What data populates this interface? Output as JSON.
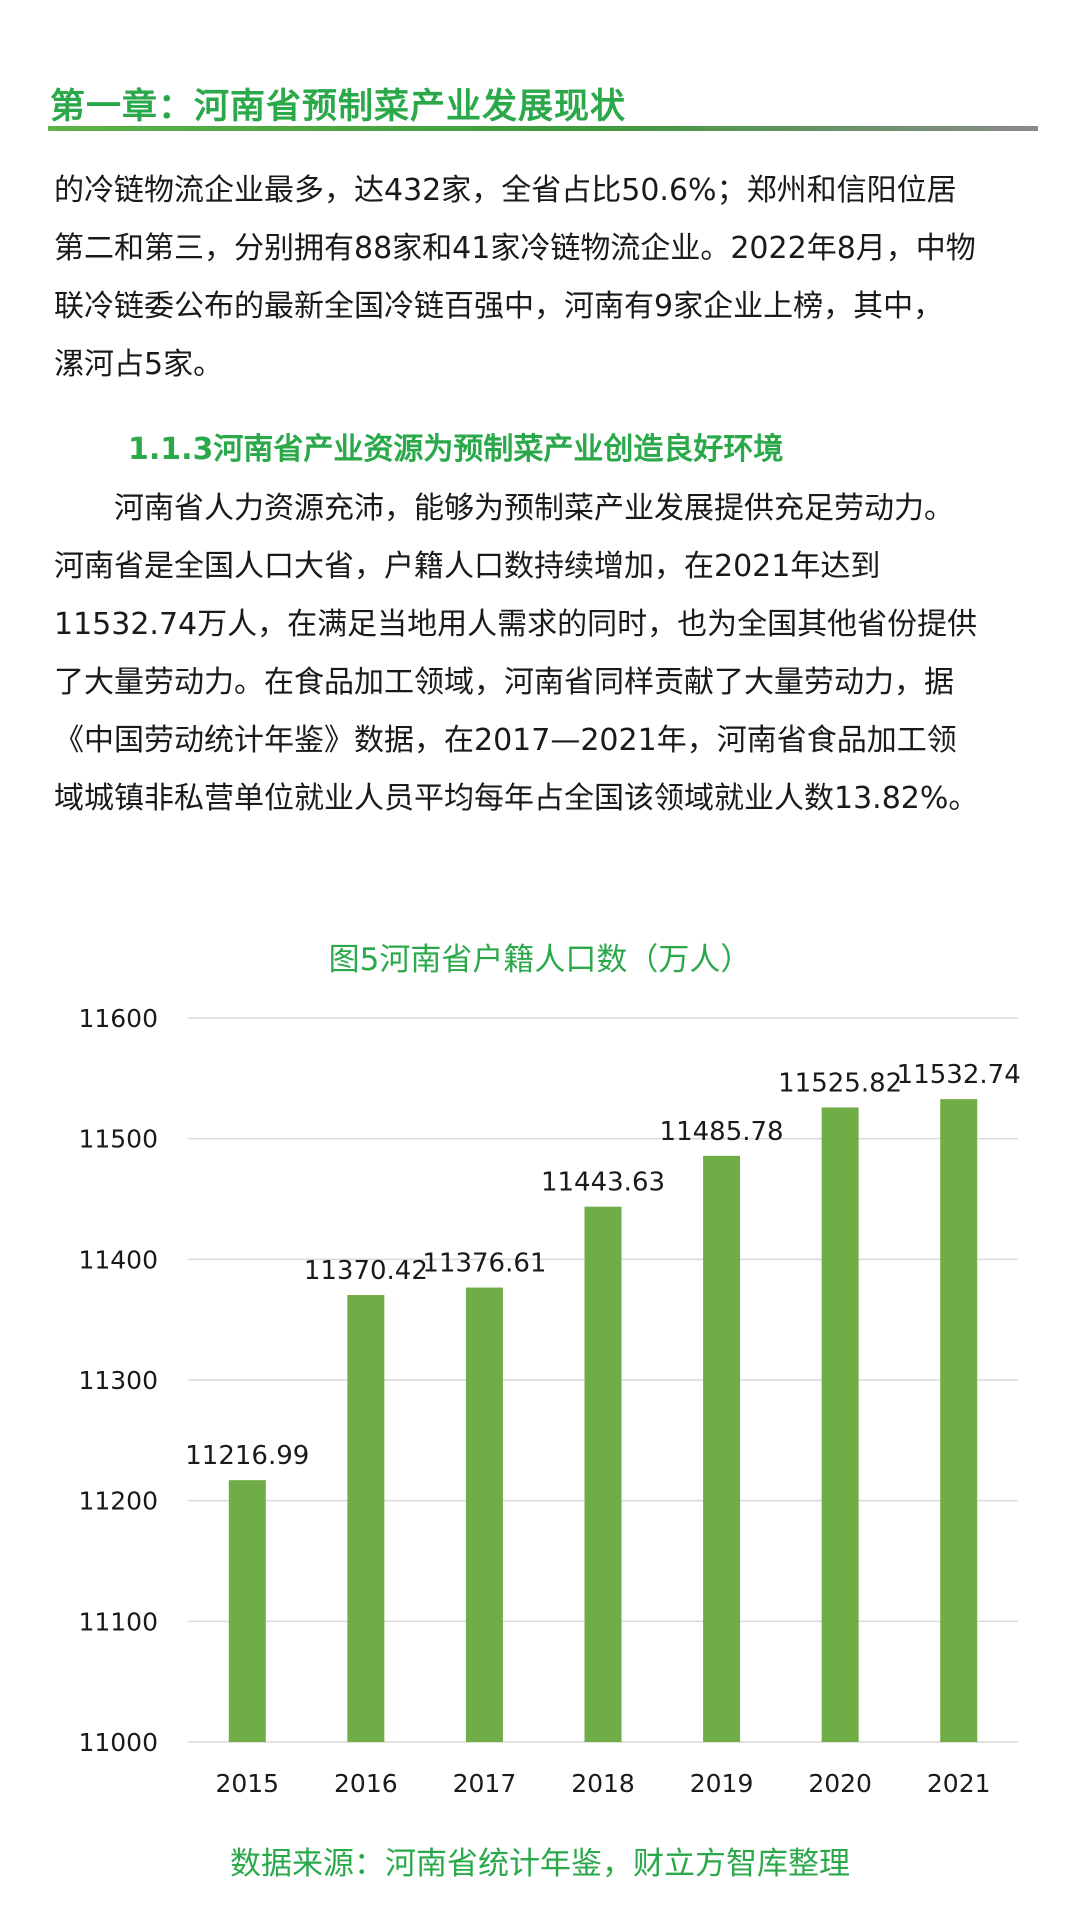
{
  "chapter": {
    "title": "第一章：河南省预制菜产业发展现状"
  },
  "paragraph1": {
    "lines": [
      "的冷链物流企业最多，达432家，全省占比50.6%；郑州和信阳位居",
      "第二和第三，分别拥有88家和41家冷链物流企业。2022年8月，中物",
      "联冷链委公布的最新全国冷链百强中，河南有9家企业上榜，其中，",
      "漯河占5家。"
    ]
  },
  "section": {
    "heading": "1.1.3河南省产业资源为预制菜产业创造良好环境"
  },
  "paragraph2": {
    "lines": [
      "　　河南省人力资源充沛，能够为预制菜产业发展提供充足劳动力。",
      "河南省是全国人口大省，户籍人口数持续增加，在2021年达到",
      "11532.74万人，在满足当地用人需求的同时，也为全国其他省份提供",
      "了大量劳动力。在食品加工领域，河南省同样贡献了大量劳动力，据",
      "《中国劳动统计年鉴》数据，在2017—2021年，河南省食品加工领",
      "域城镇非私营单位就业人员平均每年占全国该领域就业人数13.82%。"
    ]
  },
  "chart_data": {
    "type": "bar",
    "title": "图5河南省户籍人口数（万人）",
    "categories": [
      "2015",
      "2016",
      "2017",
      "2018",
      "2019",
      "2020",
      "2021"
    ],
    "values": [
      11216.99,
      11370.42,
      11376.61,
      11443.63,
      11485.78,
      11525.82,
      11532.74
    ],
    "data_labels": [
      "11216.99",
      "11370.42",
      "11376.61",
      "11443.63",
      "11485.78",
      "11525.82",
      "11532.74"
    ],
    "ylim": [
      11000,
      11600
    ],
    "yticks": [
      11000,
      11100,
      11200,
      11300,
      11400,
      11500,
      11600
    ],
    "grid": true,
    "legend": "none",
    "bar_color": "#70ad47",
    "grid_color": "#d9d9d9"
  },
  "source": {
    "text": "数据来源：河南省统计年鉴，财立方智库整理"
  },
  "colors": {
    "accent": "#2aa84a"
  }
}
